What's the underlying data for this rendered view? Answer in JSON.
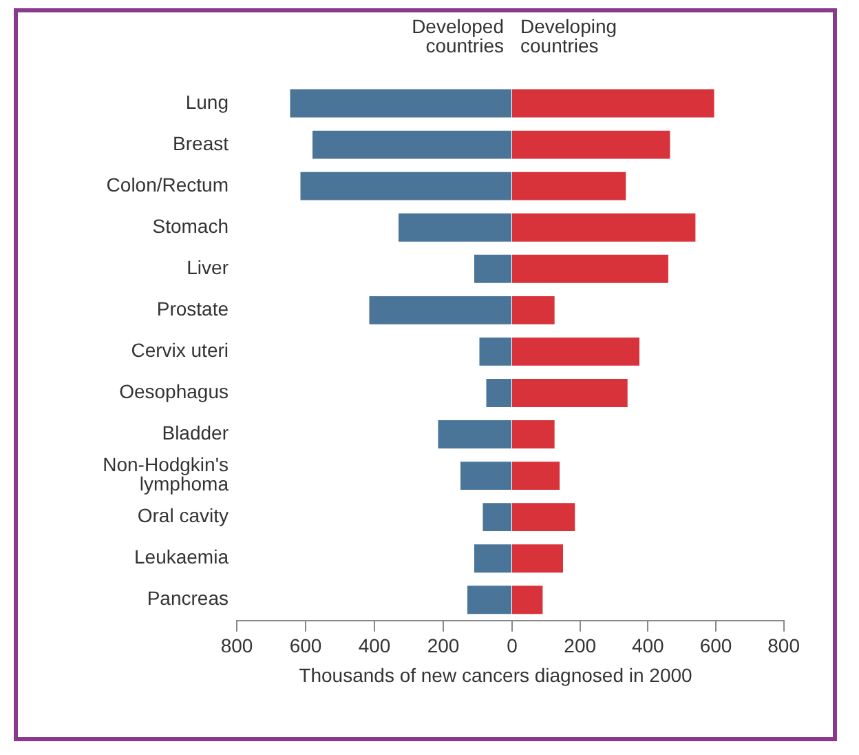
{
  "chart_data": [
    {
      "type": "bar",
      "orientation": "horizontal",
      "categories": [
        "Lung",
        "Breast",
        "Colon/Rectum",
        "Stomach",
        "Liver",
        "Prostate",
        "Cervix uteri",
        "Oesophagus",
        "Bladder",
        "Non-Hodgkin's lymphoma",
        "Oral cavity",
        "Leukaemia",
        "Pancreas"
      ],
      "series": [
        {
          "name": "Developed countries",
          "color": "#4a7598",
          "values": [
            645,
            580,
            615,
            330,
            110,
            415,
            95,
            75,
            215,
            150,
            85,
            110,
            130
          ]
        }
      ],
      "xlabel": "Thousands of new cancers diagnosed in 2000",
      "xlim": [
        800,
        0
      ],
      "xticks": [
        800,
        600,
        400,
        200,
        0
      ],
      "grid": false,
      "legend": false
    },
    {
      "type": "bar",
      "orientation": "horizontal",
      "categories": [
        null,
        null,
        null,
        null,
        null,
        null,
        null,
        null,
        null,
        null,
        null,
        null,
        null
      ],
      "series": [
        {
          "name": "Developing countries",
          "color": "#d8323a",
          "values": [
            595,
            465,
            335,
            540,
            460,
            125,
            375,
            340,
            125,
            140,
            185,
            150,
            90
          ]
        }
      ],
      "xlim": [
        0,
        800
      ],
      "xticks": [
        200,
        400,
        600,
        800
      ],
      "grid": false,
      "legend": false,
      "tick_labels": "x"
    }
  ]
}
